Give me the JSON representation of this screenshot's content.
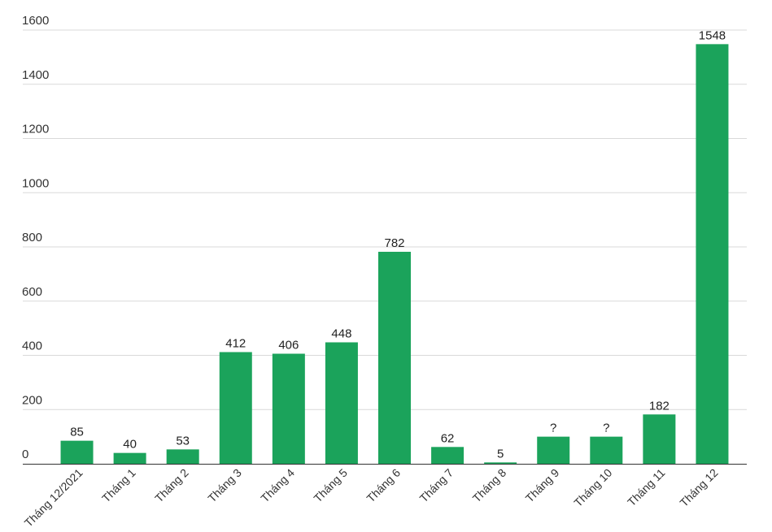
{
  "chart_data": {
    "type": "bar",
    "title": "",
    "xlabel": "",
    "ylabel": "",
    "categories": [
      "Tháng 12/2021",
      "Tháng 1",
      "Tháng 2",
      "Tháng 3",
      "Tháng 4",
      "Tháng 5",
      "Tháng 6",
      "Tháng 7",
      "Tháng 8",
      "Tháng 9",
      "Tháng 10",
      "Tháng 11",
      "Tháng 12"
    ],
    "values": [
      85,
      40,
      53,
      412,
      406,
      448,
      782,
      62,
      5,
      100,
      100,
      182,
      1548
    ],
    "data_labels": [
      "85",
      "40",
      "53",
      "412",
      "406",
      "448",
      "782",
      "62",
      "5",
      "?",
      "?",
      "182",
      "1548"
    ],
    "ylim": [
      0,
      1600
    ],
    "yticks": [
      0,
      200,
      400,
      600,
      800,
      1000,
      1200,
      1400,
      1600
    ],
    "grid": true,
    "legend": "none",
    "bar_color": "#1ba35b"
  }
}
